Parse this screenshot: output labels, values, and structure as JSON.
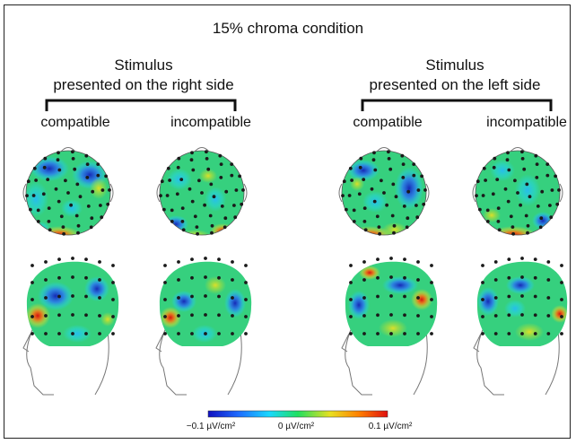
{
  "figure": {
    "title": "15% chroma condition",
    "groups": [
      {
        "label_line1": "Stimulus",
        "label_line2": "presented on the right side",
        "conditions": [
          "compatible",
          "incompatible"
        ]
      },
      {
        "label_line1": "Stimulus",
        "label_line2": "presented on the left side",
        "conditions": [
          "compatible",
          "incompatible"
        ]
      }
    ],
    "colorbar": {
      "min_label": "−0.1 µV/cm²",
      "mid_label": "0 µV/cm²",
      "max_label": "0.1 µV/cm²",
      "colors": [
        "#1010c0",
        "#1e6cff",
        "#18d8ff",
        "#20e060",
        "#e8e020",
        "#ff8000",
        "#e01010"
      ]
    },
    "base_color": "#36d07e"
  }
}
